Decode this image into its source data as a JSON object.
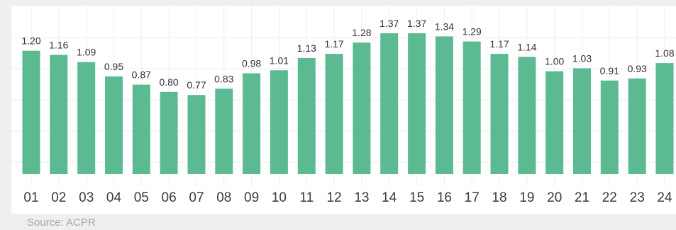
{
  "chart_data": {
    "type": "bar",
    "categories": [
      "01",
      "02",
      "03",
      "04",
      "05",
      "06",
      "07",
      "08",
      "09",
      "10",
      "11",
      "12",
      "13",
      "14",
      "15",
      "16",
      "17",
      "18",
      "19",
      "20",
      "21",
      "22",
      "23",
      "24"
    ],
    "values": [
      1.2,
      1.16,
      1.09,
      0.95,
      0.87,
      0.8,
      0.77,
      0.83,
      0.98,
      1.01,
      1.13,
      1.17,
      1.28,
      1.37,
      1.37,
      1.34,
      1.29,
      1.17,
      1.14,
      1.0,
      1.03,
      0.91,
      0.93,
      1.08
    ],
    "value_labels": [
      "1.20",
      "1.16",
      "1.09",
      "0.95",
      "0.87",
      "0.80",
      "0.77",
      "0.83",
      "0.98",
      "1.01",
      "1.13",
      "1.17",
      "1.28",
      "1.37",
      "1.37",
      "1.34",
      "1.29",
      "1.17",
      "1.14",
      "1.00",
      "1.03",
      "0.91",
      "0.93",
      "1.08"
    ],
    "ylim": [
      0,
      1.37
    ],
    "grid": true,
    "legend": "none",
    "bar_color": "#5cba92",
    "background_color": "#efefef",
    "plot_background": "#ffffff"
  },
  "footer": {
    "source": "Source: ACPR"
  }
}
